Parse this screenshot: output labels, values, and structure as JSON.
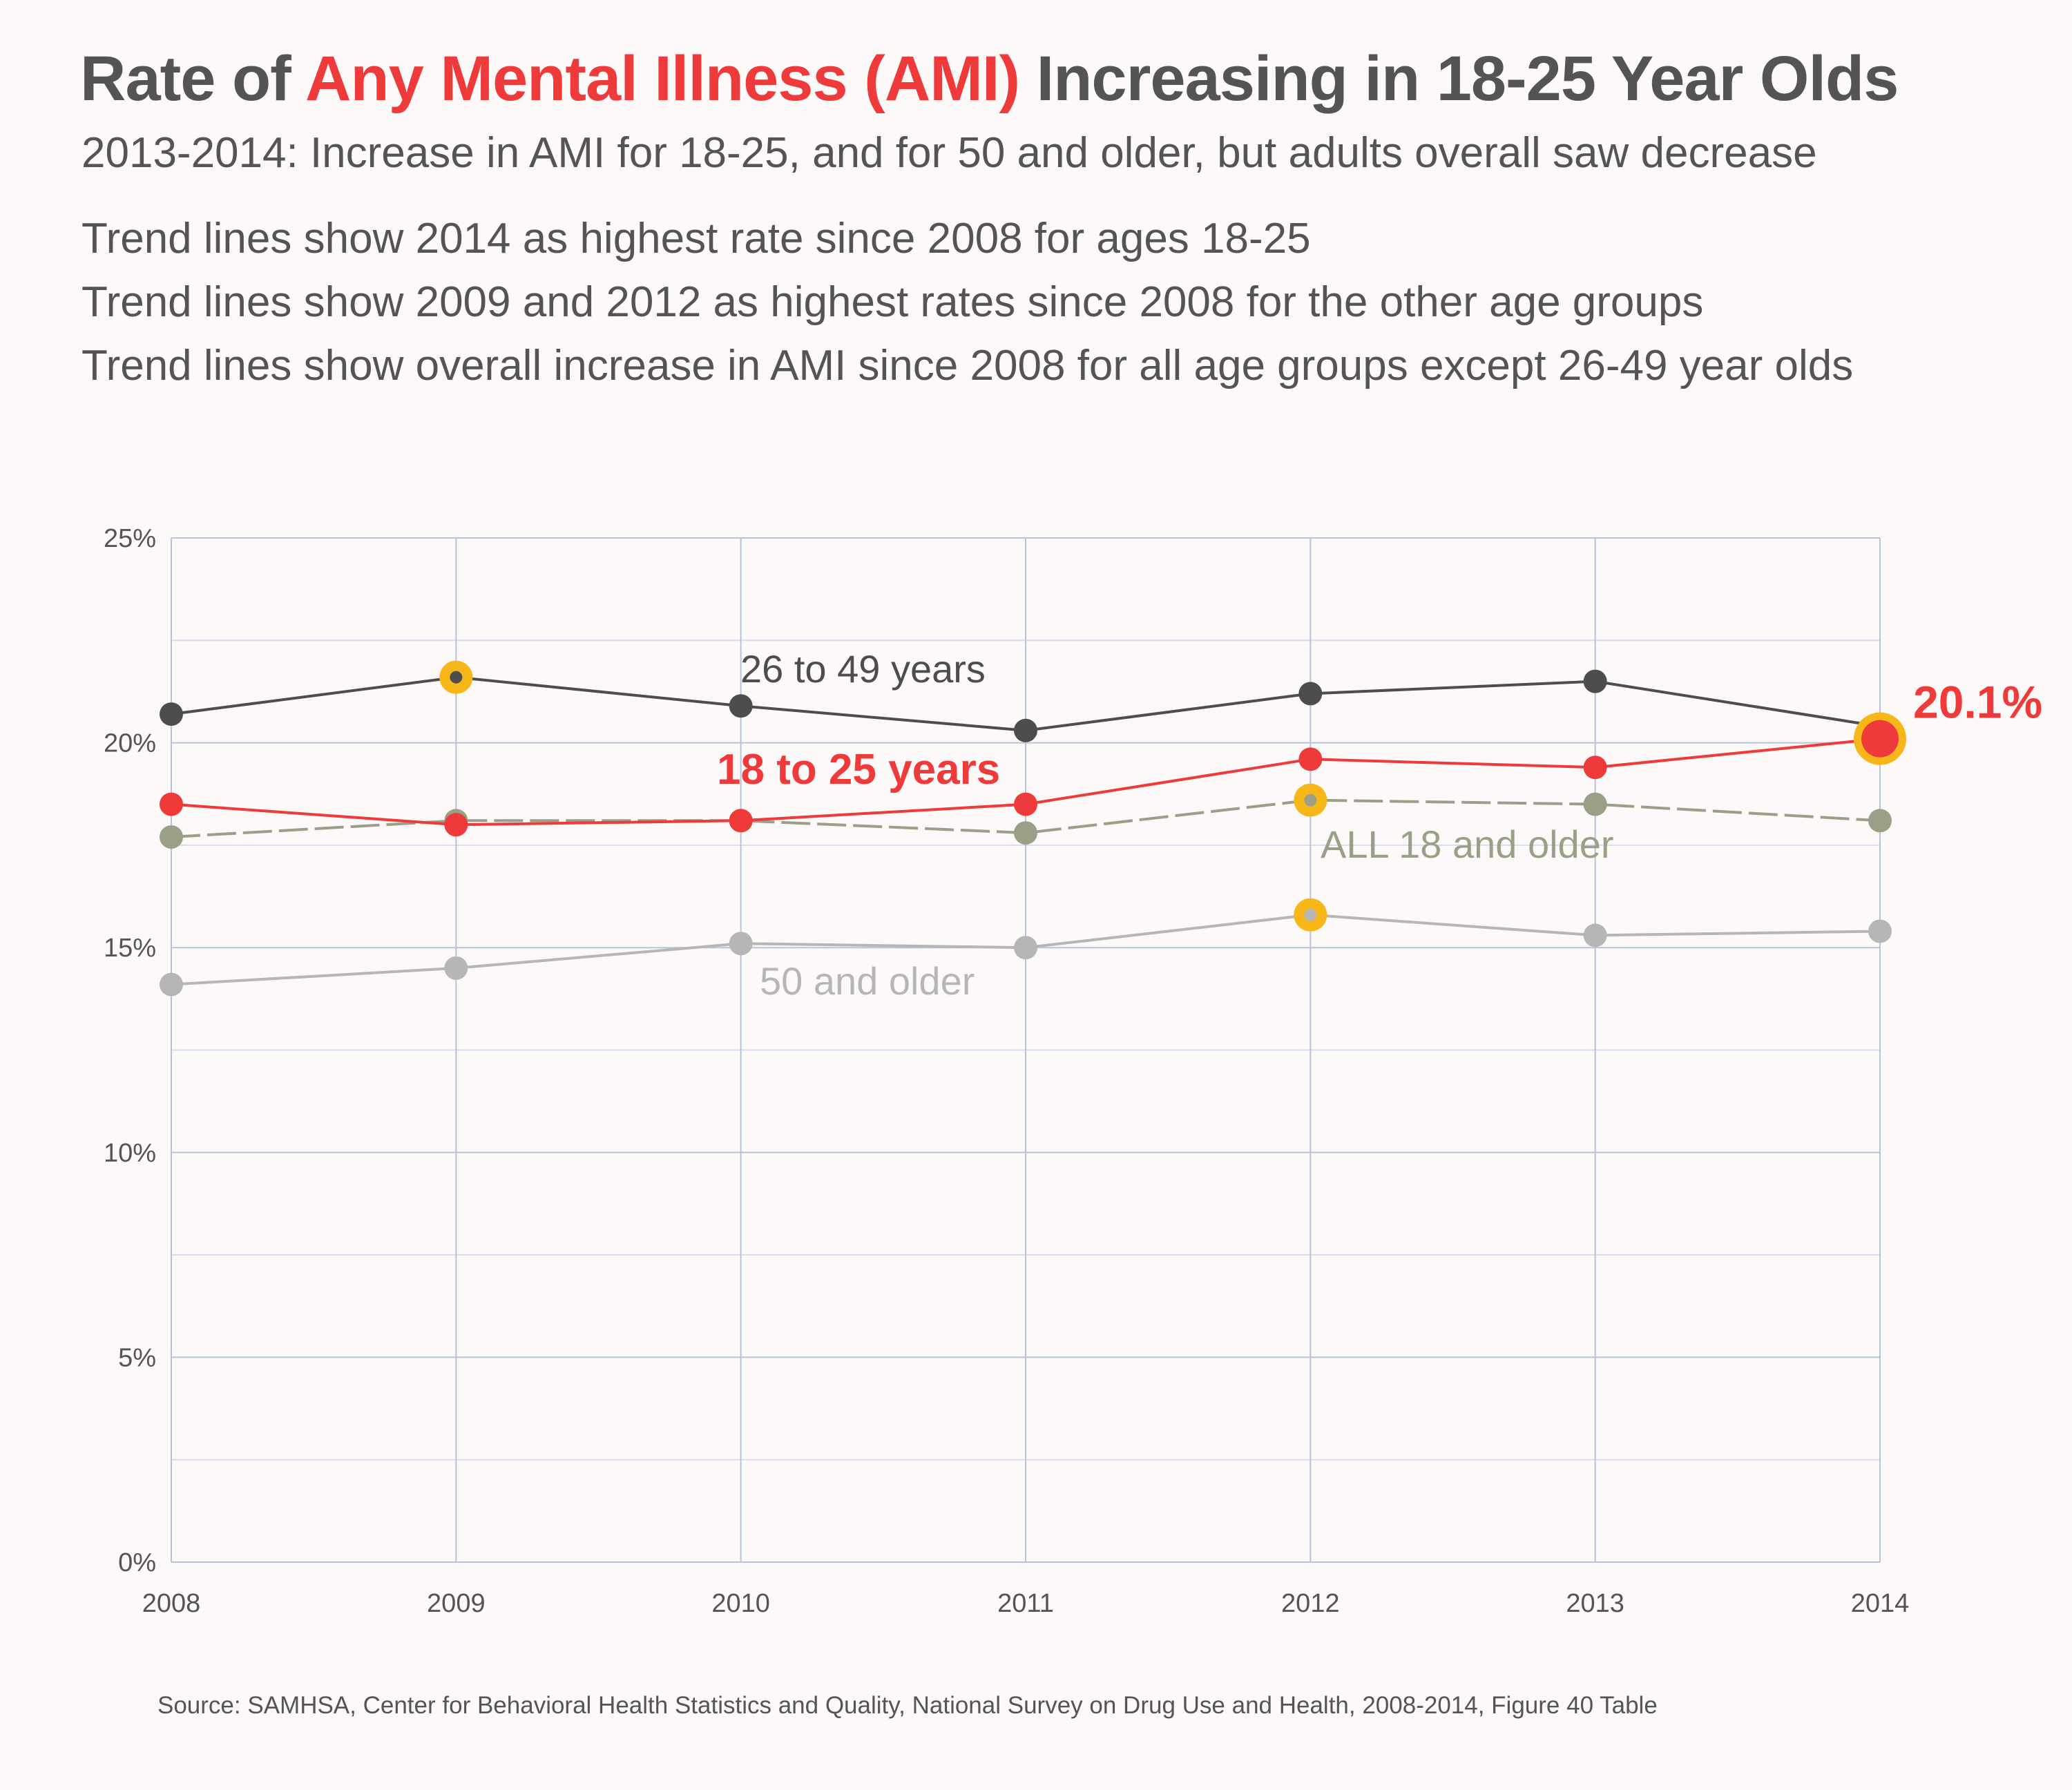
{
  "header": {
    "title_pre": "Rate of ",
    "title_highlight": "Any Mental Illness (AMI)",
    "title_post": " Increasing in 18-25 Year Olds",
    "subtitle": "2013-2014: Increase in AMI for 18-25, and for 50 and older, but adults overall saw decrease",
    "notes": [
      "Trend lines show 2014 as highest rate since 2008 for ages 18-25",
      "Trend lines show 2009 and 2012 as highest rates since 2008 for the other age groups",
      "Trend lines show overall increase in AMI since 2008 for all age groups except 26-49 year olds"
    ]
  },
  "footer": {
    "source": "Source: SAMHSA, Center for Behavioral Health Statistics and Quality, National Survey on Drug Use and Health, 2008-2014,  Figure 40 Table"
  },
  "colors": {
    "red": "#ee3a3a",
    "dark": "#4d4d4d",
    "olive": "#9a9f87",
    "light": "#b6b6b6",
    "highlight": "#f7b718",
    "grid_major": "#b8c2dc",
    "grid_minor": "#d7ddf0"
  },
  "chart_data": {
    "type": "line",
    "x": [
      "2008",
      "2009",
      "2010",
      "2011",
      "2012",
      "2013",
      "2014"
    ],
    "ylim": [
      0,
      25
    ],
    "y_ticks": [
      "0%",
      "5%",
      "10%",
      "15%",
      "20%",
      "25%"
    ],
    "grid": true,
    "series": [
      {
        "name": "26 to 49 years",
        "color": "#4d4d4d",
        "dashed": false,
        "values": [
          20.7,
          21.6,
          20.9,
          20.3,
          21.2,
          21.5,
          20.4
        ],
        "highlight_index": [
          1
        ]
      },
      {
        "name": "ALL 18 and older",
        "color": "#9a9f87",
        "dashed": true,
        "values": [
          17.7,
          18.1,
          18.1,
          17.8,
          18.6,
          18.5,
          18.1
        ],
        "highlight_index": [
          4
        ]
      },
      {
        "name": "18 to 25 years",
        "color": "#ee3a3a",
        "dashed": false,
        "values": [
          18.5,
          18.0,
          18.1,
          18.5,
          19.6,
          19.4,
          20.1
        ],
        "highlight_index": [
          6
        ]
      },
      {
        "name": "50 and older",
        "color": "#b6b6b6",
        "dashed": false,
        "values": [
          14.1,
          14.5,
          15.1,
          15.0,
          15.8,
          15.3,
          15.4
        ],
        "highlight_index": [
          4
        ]
      }
    ],
    "annotations": [
      {
        "text": "20.1%",
        "series": "18 to 25 years",
        "at": "2014"
      }
    ]
  }
}
